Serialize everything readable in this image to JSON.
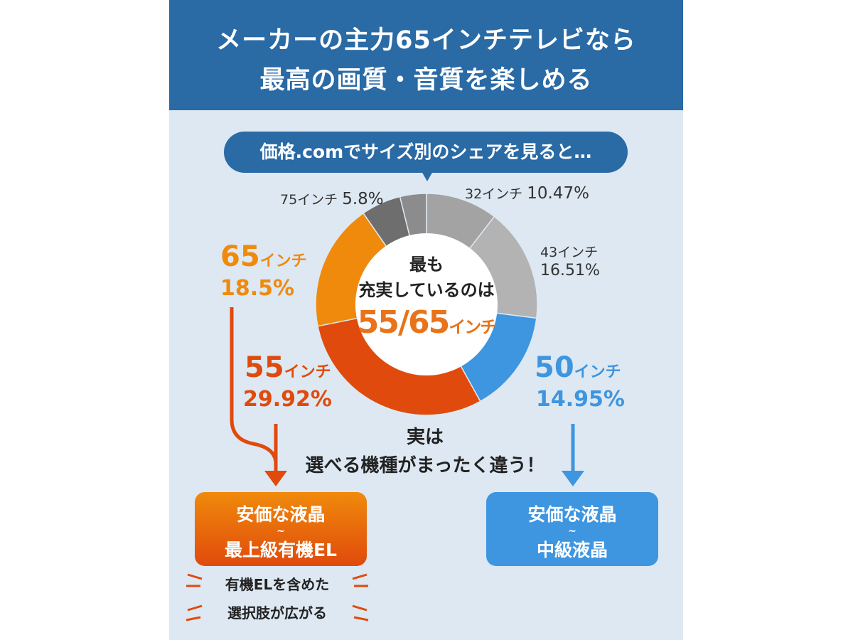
{
  "header": {
    "line1": "メーカーの主力65インチテレビなら",
    "line2": "最高の画質・音質を楽しめる"
  },
  "bubble": "価格.comでサイズ別のシェアを見ると…",
  "center": {
    "line1": "最も",
    "line2": "充実しているのは",
    "highlight_num": "55/65",
    "highlight_unit": "インチ"
  },
  "middle_note": {
    "line1": "実は",
    "line2": "選べる機種がまったく違う！"
  },
  "boxes": {
    "left": {
      "line1": "安価な液晶",
      "tilde": "~",
      "line2": "最上級有機EL"
    },
    "right": {
      "line1": "安価な液晶",
      "tilde": "~",
      "line2": "中級液晶"
    }
  },
  "bottom_note": {
    "line1": "有機ELを含めた",
    "line2": "選択肢が広がる"
  },
  "colors": {
    "header": "#2a6aa5",
    "orange": "#f08a0c",
    "red_orange": "#e04a0c",
    "blue": "#3e95e0",
    "gray_light": "#b3b3b3",
    "gray_mid": "#a3a3a3",
    "gray_dark": "#6e6e6e",
    "gray_other": "#8c8c8c",
    "bg": "#dde8f2"
  },
  "chart_data": {
    "type": "pie",
    "donut": true,
    "slices": [
      {
        "label": "32インチ",
        "size": "32",
        "value": 10.47,
        "value_text": "10.47%",
        "color": "#a3a3a3"
      },
      {
        "label": "43インチ",
        "size": "43",
        "value": 16.51,
        "value_text": "16.51%",
        "color": "#b3b3b3"
      },
      {
        "label": "50インチ",
        "size": "50",
        "value": 14.95,
        "value_text": "14.95%",
        "color": "#3e95e0"
      },
      {
        "label": "55インチ",
        "size": "55",
        "value": 29.92,
        "value_text": "29.92%",
        "color": "#e04a0c"
      },
      {
        "label": "65インチ",
        "size": "65",
        "value": 18.5,
        "value_text": "18.5%",
        "color": "#f08a0c"
      },
      {
        "label": "75インチ",
        "size": "75",
        "value": 5.8,
        "value_text": "5.8%",
        "color": "#6e6e6e"
      },
      {
        "label": "",
        "size": "",
        "value": 3.85,
        "value_text": "",
        "color": "#8c8c8c"
      }
    ],
    "unit": "インチ",
    "percent_sign": "%"
  }
}
